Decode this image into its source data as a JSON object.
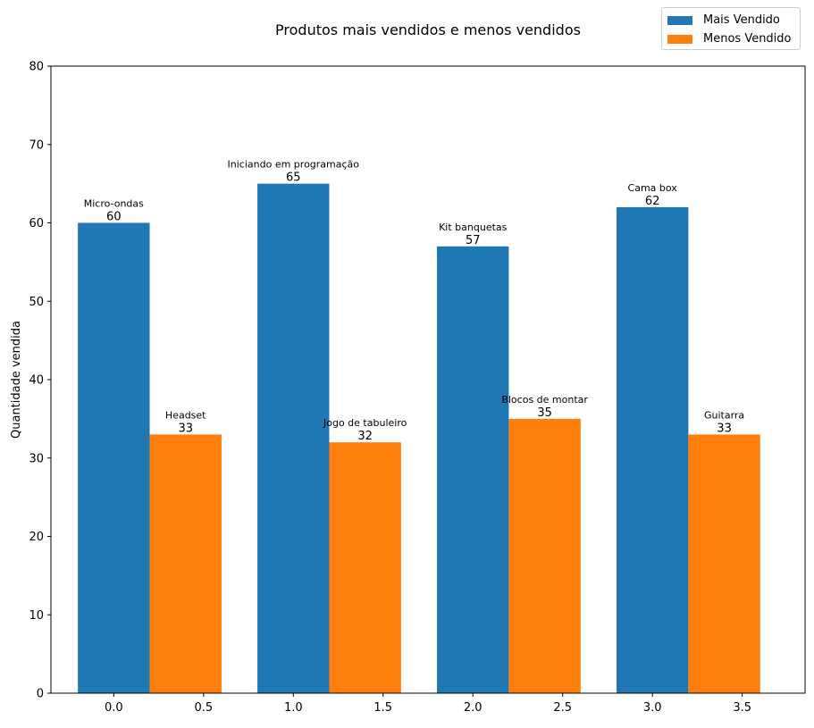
{
  "chart_data": {
    "type": "bar",
    "title": "Produtos mais vendidos e menos vendidos",
    "xlabel": "",
    "ylabel": "Quantidade vendida",
    "ylim": [
      0,
      80
    ],
    "xlim": [
      -0.35,
      3.85
    ],
    "yticks": [
      0,
      10,
      20,
      30,
      40,
      50,
      60,
      70,
      80
    ],
    "xticks": [
      "0.0",
      "0.5",
      "1.0",
      "1.5",
      "2.0",
      "2.5",
      "3.0",
      "3.5"
    ],
    "xtick_values": [
      0.0,
      0.5,
      1.0,
      1.5,
      2.0,
      2.5,
      3.0,
      3.5
    ],
    "bar_width": 0.4,
    "grid": false,
    "legend_position": "top-right",
    "series": [
      {
        "name": "Mais Vendido",
        "color": "#1f77b4",
        "x": [
          0.0,
          1.0,
          2.0,
          3.0
        ],
        "values": [
          60,
          65,
          57,
          62
        ],
        "products": [
          "Micro-ondas",
          "Iniciando em programação",
          "Kit banquetas",
          "Cama box"
        ]
      },
      {
        "name": "Menos Vendido",
        "color": "#ff7f0e",
        "x": [
          0.4,
          1.4,
          2.4,
          3.4
        ],
        "values": [
          33,
          32,
          35,
          33
        ],
        "products": [
          "Headset",
          "Jogo de tabuleiro",
          "Blocos de montar",
          "Guitarra"
        ]
      }
    ]
  }
}
